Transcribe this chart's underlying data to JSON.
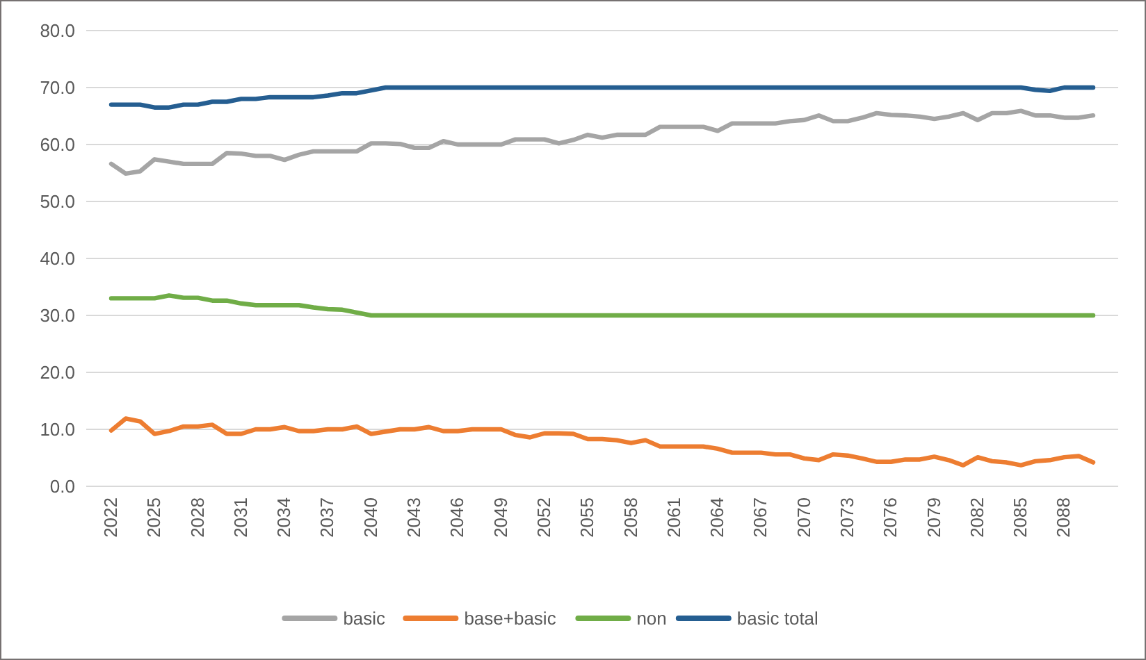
{
  "chart_data": {
    "type": "line",
    "categories": [
      "2022",
      null,
      null,
      "2025",
      null,
      null,
      "2028",
      null,
      null,
      "2031",
      null,
      null,
      "2034",
      null,
      null,
      "2037",
      null,
      null,
      "2040",
      null,
      null,
      "2043",
      null,
      null,
      "2046",
      null,
      null,
      "2049",
      null,
      null,
      "2052",
      null,
      null,
      "2055",
      null,
      null,
      "2058",
      null,
      null,
      "2061",
      null,
      null,
      "2064",
      null,
      null,
      "2067",
      null,
      null,
      "2070",
      null,
      null,
      "2073",
      null,
      null,
      "2076",
      null,
      null,
      "2079",
      null,
      null,
      "2082",
      null,
      null,
      "2085",
      null,
      null,
      "2088",
      null,
      null
    ],
    "series": [
      {
        "name": "basic",
        "color": "#a5a5a5",
        "values": [
          56.6,
          54.9,
          55.3,
          57.4,
          57.0,
          56.6,
          56.6,
          56.6,
          58.5,
          58.4,
          58.0,
          58.0,
          57.3,
          58.2,
          58.8,
          58.8,
          58.8,
          58.8,
          60.2,
          60.2,
          60.1,
          59.4,
          59.4,
          60.6,
          60.0,
          60.0,
          60.0,
          60.0,
          60.9,
          60.9,
          60.9,
          60.2,
          60.8,
          61.7,
          61.2,
          61.7,
          61.7,
          61.7,
          63.1,
          63.1,
          63.1,
          63.1,
          62.4,
          63.7,
          63.7,
          63.7,
          63.7,
          64.1,
          64.3,
          65.1,
          64.1,
          64.1,
          64.7,
          65.5,
          65.2,
          65.1,
          64.9,
          64.5,
          64.9,
          65.5,
          64.3,
          65.5,
          65.5,
          65.9,
          65.1,
          65.1,
          64.7,
          64.7,
          65.1
        ]
      },
      {
        "name": "base+basic",
        "color": "#ed7d31",
        "values": [
          9.8,
          11.9,
          11.4,
          9.2,
          9.7,
          10.5,
          10.5,
          10.8,
          9.2,
          9.2,
          10.0,
          10.0,
          10.4,
          9.7,
          9.7,
          10.0,
          10.0,
          10.5,
          9.2,
          9.6,
          10.0,
          10.0,
          10.4,
          9.7,
          9.7,
          10.0,
          10.0,
          10.0,
          9.0,
          8.6,
          9.3,
          9.3,
          9.2,
          8.3,
          8.3,
          8.1,
          7.6,
          8.1,
          7.0,
          7.0,
          7.0,
          7.0,
          6.6,
          5.9,
          5.9,
          5.9,
          5.6,
          5.6,
          4.9,
          4.6,
          5.6,
          5.4,
          4.9,
          4.3,
          4.3,
          4.7,
          4.7,
          5.2,
          4.6,
          3.7,
          5.1,
          4.4,
          4.2,
          3.7,
          4.4,
          4.6,
          5.1,
          5.3,
          4.2
        ]
      },
      {
        "name": "non",
        "color": "#70ad47",
        "values": [
          33.0,
          33.0,
          33.0,
          33.0,
          33.5,
          33.1,
          33.1,
          32.6,
          32.6,
          32.1,
          31.8,
          31.8,
          31.8,
          31.8,
          31.4,
          31.1,
          31.0,
          30.5,
          30,
          30,
          30,
          30,
          30,
          30,
          30,
          30,
          30,
          30,
          30,
          30,
          30,
          30,
          30,
          30,
          30,
          30,
          30,
          30,
          30,
          30,
          30,
          30,
          30,
          30,
          30,
          30,
          30,
          30,
          30,
          30,
          30,
          30,
          30,
          30,
          30,
          30,
          30,
          30,
          30,
          30,
          30,
          30,
          30,
          30,
          30,
          30,
          30,
          30,
          30
        ]
      },
      {
        "name": "basic total",
        "color": "#255e91",
        "values": [
          67,
          67,
          67,
          66.5,
          66.5,
          67,
          67,
          67.5,
          67.5,
          68,
          68,
          68.3,
          68.3,
          68.3,
          68.3,
          68.6,
          69,
          69,
          69.5,
          70,
          70,
          70,
          70,
          70,
          70,
          70,
          70,
          70,
          70,
          70,
          70,
          70,
          70,
          70,
          70,
          70,
          70,
          70,
          70,
          70,
          70,
          70,
          70,
          70,
          70,
          70,
          70,
          70,
          70,
          70,
          70,
          70,
          70,
          70,
          70,
          70,
          70,
          70,
          70,
          70,
          70,
          70,
          70,
          70,
          69.6,
          69.4,
          70,
          70,
          70
        ]
      }
    ],
    "ylim": [
      0,
      80
    ],
    "yticks": [
      {
        "value": 0,
        "label": "0.0"
      },
      {
        "value": 10,
        "label": "10.0"
      },
      {
        "value": 20,
        "label": "20.0"
      },
      {
        "value": 30,
        "label": "30.0"
      },
      {
        "value": 40,
        "label": "40.0"
      },
      {
        "value": 50,
        "label": "50.0"
      },
      {
        "value": 60,
        "label": "60.0"
      },
      {
        "value": 70,
        "label": "70.0"
      },
      {
        "value": 80,
        "label": "80.0"
      }
    ],
    "grid": "y",
    "legend": "bottom",
    "marker": "none",
    "line_style": "solid"
  }
}
